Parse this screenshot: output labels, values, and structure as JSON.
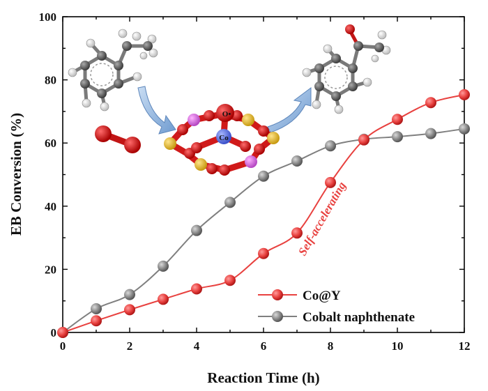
{
  "chart_data": {
    "type": "line",
    "xlabel": "Reaction Time (h)",
    "ylabel": "EB Conversion (%)",
    "xlim": [
      0,
      12
    ],
    "ylim": [
      0,
      100
    ],
    "x_ticks": [
      0,
      2,
      4,
      6,
      8,
      10,
      12
    ],
    "y_ticks": [
      0,
      20,
      40,
      60,
      80,
      100
    ],
    "grid": false,
    "legend_position": "bottom-right",
    "series": [
      {
        "name": "Co@Y",
        "color": "#e8413f",
        "x": [
          0,
          1,
          2,
          3,
          4,
          5,
          6,
          7,
          8,
          9,
          10,
          11,
          12
        ],
        "values": [
          0,
          3.7,
          7.2,
          10.5,
          13.8,
          16.5,
          25.0,
          31.5,
          47.5,
          61.0,
          67.5,
          72.8,
          75.3
        ]
      },
      {
        "name": "Cobalt naphthenate",
        "color": "#7f7f7f",
        "x": [
          0,
          1,
          2,
          3,
          4,
          5,
          6,
          7,
          8,
          9,
          10,
          11,
          12
        ],
        "values": [
          0,
          7.5,
          12.0,
          21.0,
          32.3,
          41.2,
          49.5,
          54.3,
          59.1,
          61.2,
          62.0,
          63.0,
          64.5
        ]
      }
    ],
    "annotation": {
      "text": "Self-accelerating",
      "color": "#e8413f"
    },
    "inset": {
      "co_label": "Co",
      "oxygen_label": "O•"
    }
  }
}
